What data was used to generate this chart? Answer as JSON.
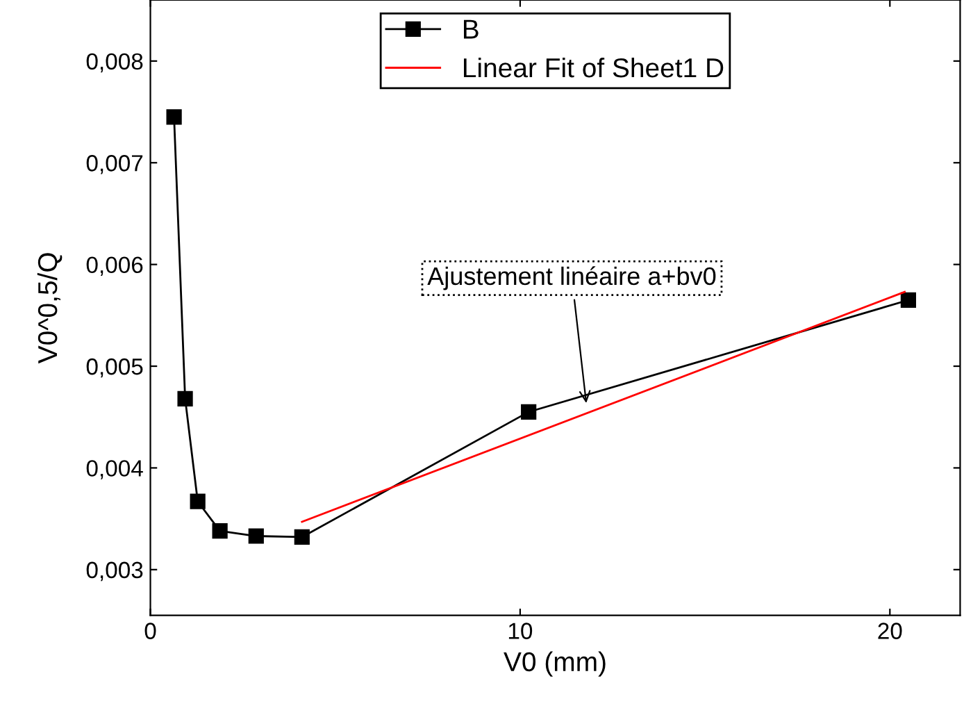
{
  "chart_data": {
    "type": "line",
    "xlabel": "V0 (mm)",
    "ylabel": "V0^0,5/Q",
    "series": [
      {
        "name": "B",
        "color": "#000000",
        "marker": "square",
        "x": [
          0.64,
          0.94,
          1.28,
          1.88,
          2.86,
          4.1,
          10.23,
          20.5
        ],
        "values": [
          0.00745,
          0.00468,
          0.00367,
          0.00338,
          0.00333,
          0.00332,
          0.00455,
          0.00565
        ]
      },
      {
        "name": "Linear Fit of Sheet1 D",
        "color": "#ff0000",
        "marker": "none",
        "x": [
          4.1,
          20.4
        ],
        "values": [
          0.00347,
          0.00573
        ]
      }
    ],
    "xlim": [
      0,
      21.9
    ],
    "xticks": [
      0,
      10,
      20
    ],
    "ylim": [
      0.00255,
      0.0086
    ],
    "yticks": [
      {
        "value": 0.003,
        "label": "0,003"
      },
      {
        "value": 0.004,
        "label": "0,004"
      },
      {
        "value": 0.005,
        "label": "0,005"
      },
      {
        "value": 0.006,
        "label": "0,006"
      },
      {
        "value": 0.007,
        "label": "0,007"
      },
      {
        "value": 0.008,
        "label": "0,008"
      }
    ],
    "annotations": [
      {
        "text": "Ajustement linéaire a+bv0",
        "x": 11.8,
        "y": 0.0046
      }
    ],
    "legend": "top",
    "grid": false
  }
}
